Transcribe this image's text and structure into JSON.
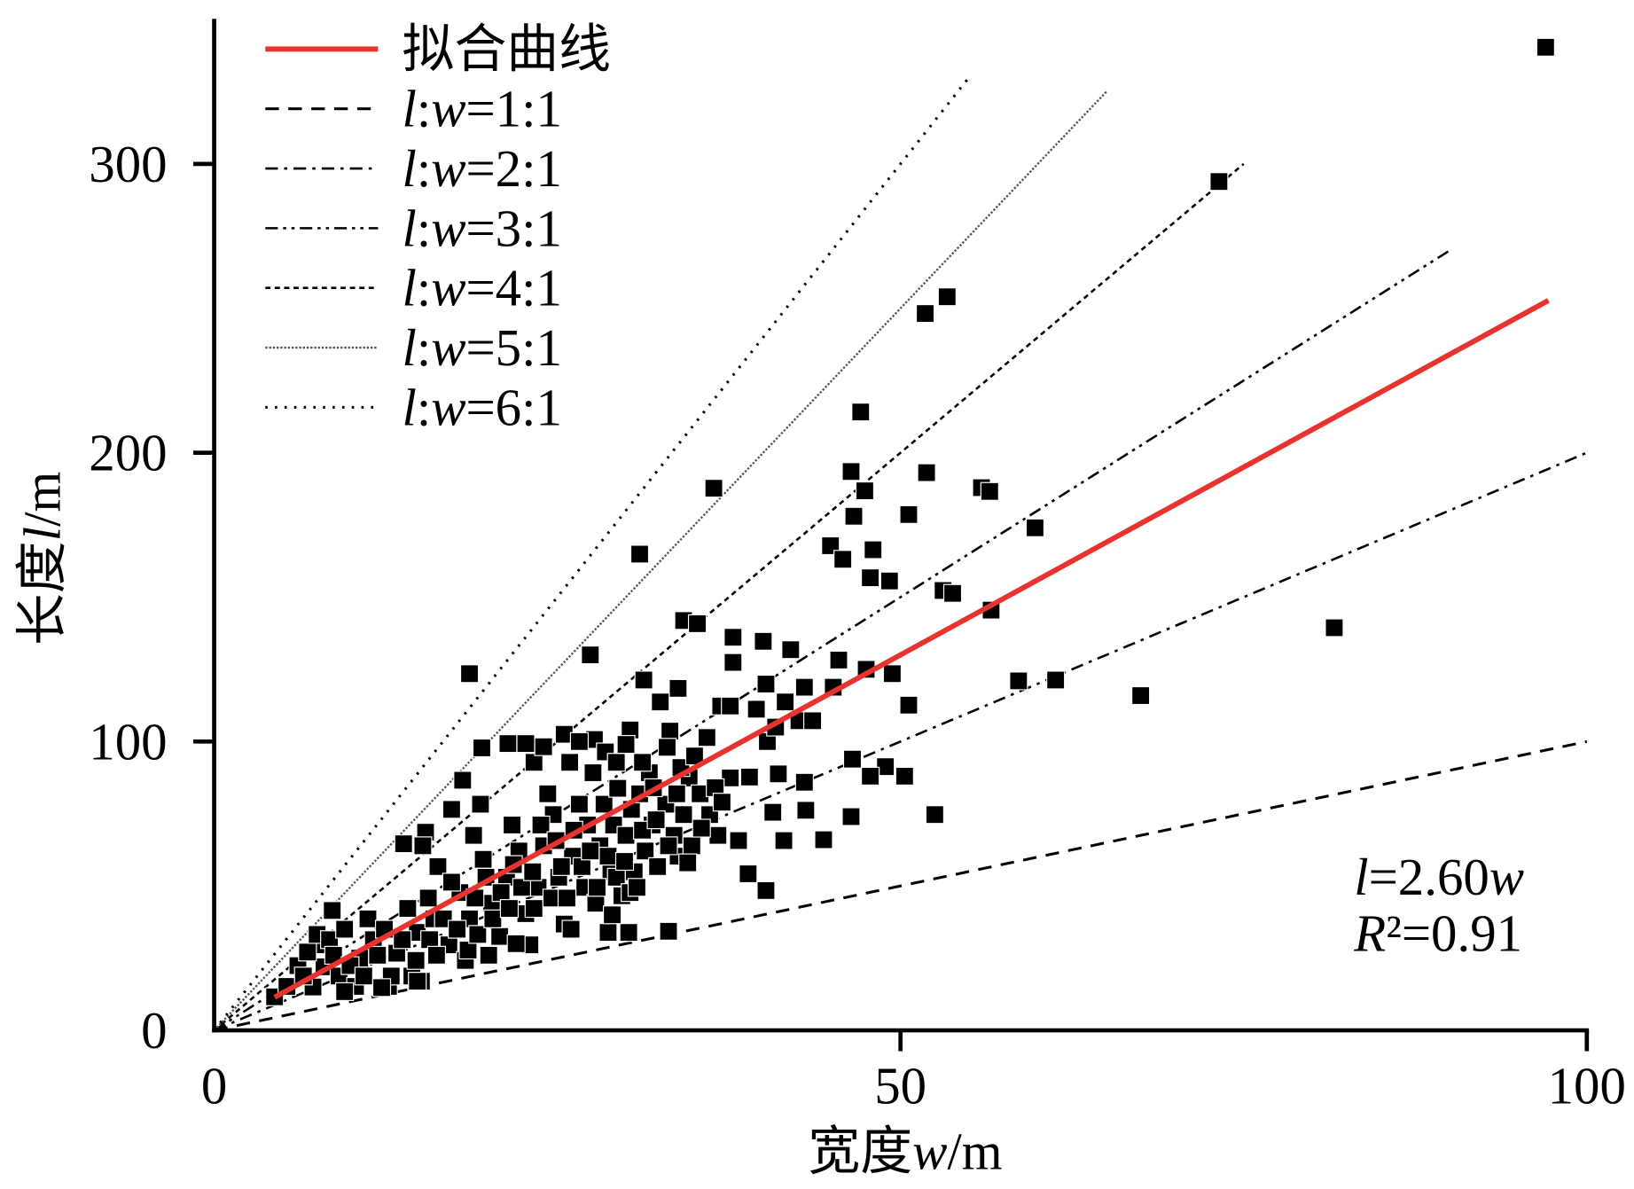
{
  "chart_data": {
    "type": "scatter",
    "xlabel": "宽度w/m",
    "ylabel": "长度l/m",
    "xlim": [
      0,
      100
    ],
    "ylim": [
      0,
      350
    ],
    "x_ticks": [
      0,
      50,
      100
    ],
    "y_ticks": [
      0,
      100,
      200,
      300
    ],
    "grid": false,
    "legend_position": "top-left",
    "scatter": {
      "marker": "square",
      "color": "#000000",
      "points": [
        [
          97.0,
          340.4
        ],
        [
          73.2,
          293.9
        ],
        [
          53.4,
          254.0
        ],
        [
          51.8,
          248.2
        ],
        [
          47.1,
          214.1
        ],
        [
          46.4,
          193.5
        ],
        [
          51.9,
          193.1
        ],
        [
          47.4,
          186.8
        ],
        [
          55.9,
          187.9
        ],
        [
          56.5,
          186.6
        ],
        [
          36.4,
          187.7
        ],
        [
          50.6,
          178.6
        ],
        [
          46.6,
          178.0
        ],
        [
          59.8,
          174.0
        ],
        [
          31.0,
          164.9
        ],
        [
          44.9,
          167.8
        ],
        [
          45.8,
          163.1
        ],
        [
          48.0,
          166.4
        ],
        [
          47.8,
          156.7
        ],
        [
          49.2,
          155.6
        ],
        [
          53.1,
          152.3
        ],
        [
          53.8,
          151.3
        ],
        [
          56.6,
          145.5
        ],
        [
          34.2,
          141.9
        ],
        [
          35.2,
          140.8
        ],
        [
          37.8,
          136.1
        ],
        [
          40.0,
          134.7
        ],
        [
          42.0,
          131.8
        ],
        [
          27.4,
          130.0
        ],
        [
          45.5,
          128.2
        ],
        [
          37.8,
          127.4
        ],
        [
          47.5,
          125.0
        ],
        [
          49.4,
          123.5
        ],
        [
          18.6,
          123.5
        ],
        [
          81.6,
          139.4
        ],
        [
          31.3,
          121.3
        ],
        [
          58.6,
          121.0
        ],
        [
          61.3,
          121.3
        ],
        [
          33.8,
          118.4
        ],
        [
          40.2,
          119.9
        ],
        [
          43.0,
          118.8
        ],
        [
          45.1,
          118.8
        ],
        [
          67.5,
          115.9
        ],
        [
          32.5,
          113.7
        ],
        [
          36.9,
          112.3
        ],
        [
          37.6,
          112.3
        ],
        [
          39.5,
          111.2
        ],
        [
          41.6,
          113.7
        ],
        [
          50.6,
          112.6
        ],
        [
          33.2,
          103.6
        ],
        [
          42.6,
          107.2
        ],
        [
          43.6,
          107.2
        ],
        [
          30.3,
          104.0
        ],
        [
          25.5,
          102.5
        ],
        [
          27.7,
          100.7
        ],
        [
          21.4,
          99.3
        ],
        [
          22.7,
          99.3
        ],
        [
          19.5,
          97.8
        ],
        [
          35.9,
          101.4
        ],
        [
          40.3,
          100.0
        ],
        [
          40.9,
          105.0
        ],
        [
          46.5,
          93.9
        ],
        [
          48.9,
          91.3
        ],
        [
          50.3,
          88.0
        ],
        [
          47.8,
          88.0
        ],
        [
          41.1,
          88.8
        ],
        [
          43.0,
          85.9
        ],
        [
          39.0,
          87.7
        ],
        [
          37.6,
          87.4
        ],
        [
          18.1,
          86.6
        ],
        [
          52.5,
          74.7
        ],
        [
          46.4,
          74.0
        ],
        [
          43.1,
          76.2
        ],
        [
          40.7,
          75.5
        ],
        [
          44.4,
          66.0
        ],
        [
          41.5,
          65.7
        ],
        [
          38.2,
          65.7
        ],
        [
          36.7,
          67.5
        ],
        [
          38.9,
          54.2
        ],
        [
          40.2,
          48.4
        ],
        [
          33.1,
          34.3
        ],
        [
          30.2,
          33.9
        ],
        [
          28.7,
          33.9
        ],
        [
          4.4,
          11.6
        ],
        [
          7.2,
          15.0
        ],
        [
          8.0,
          22.0
        ],
        [
          8.6,
          41.5
        ],
        [
          7.6,
          29.6
        ],
        [
          9.1,
          18.8
        ],
        [
          10.3,
          15.2
        ],
        [
          10.6,
          25.0
        ],
        [
          11.6,
          31.4
        ],
        [
          12.7,
          15.2
        ],
        [
          13.3,
          26.7
        ],
        [
          13.8,
          64.6
        ],
        [
          14.4,
          18.8
        ],
        [
          14.8,
          33.9
        ],
        [
          15.4,
          68.6
        ],
        [
          15.6,
          45.8
        ],
        [
          16.0,
          38.6
        ],
        [
          16.3,
          56.7
        ],
        [
          17.1,
          29.6
        ],
        [
          17.9,
          47.7
        ],
        [
          18.3,
          24.2
        ],
        [
          18.6,
          38.6
        ],
        [
          18.9,
          67.5
        ],
        [
          19.4,
          78.3
        ],
        [
          19.6,
          59.2
        ],
        [
          20.2,
          44.0
        ],
        [
          20.8,
          32.5
        ],
        [
          21.3,
          53.0
        ],
        [
          21.7,
          71.1
        ],
        [
          22.2,
          62.1
        ],
        [
          22.7,
          40.4
        ],
        [
          23.0,
          29.6
        ],
        [
          23.6,
          49.5
        ],
        [
          24.0,
          63.9
        ],
        [
          24.3,
          81.9
        ],
        [
          24.7,
          74.7
        ],
        [
          25.1,
          53.0
        ],
        [
          25.5,
          36.8
        ],
        [
          25.9,
          92.8
        ],
        [
          26.1,
          60.3
        ],
        [
          26.6,
          78.3
        ],
        [
          27.0,
          49.5
        ],
        [
          27.2,
          71.1
        ],
        [
          27.6,
          89.2
        ],
        [
          27.8,
          44.0
        ],
        [
          28.1,
          63.9
        ],
        [
          28.4,
          78.3
        ],
        [
          28.5,
          96.4
        ],
        [
          28.9,
          54.9
        ],
        [
          29.1,
          71.1
        ],
        [
          29.4,
          83.8
        ],
        [
          29.7,
          46.6
        ],
        [
          30.0,
          67.5
        ],
        [
          30.4,
          76.5
        ],
        [
          30.6,
          54.9
        ],
        [
          31.0,
          81.9
        ],
        [
          31.4,
          62.1
        ],
        [
          31.7,
          89.2
        ],
        [
          31.9,
          71.1
        ],
        [
          32.3,
          56.7
        ],
        [
          32.9,
          78.3
        ],
        [
          33.5,
          67.5
        ],
        [
          33.8,
          60.3
        ],
        [
          34.2,
          74.7
        ],
        [
          34.6,
          87.4
        ],
        [
          34.8,
          63.9
        ],
        [
          35.4,
          81.9
        ],
        [
          36.1,
          74.7
        ],
        [
          5.3,
          15.2
        ],
        [
          6.1,
          22.4
        ],
        [
          6.5,
          18.8
        ],
        [
          6.8,
          27.1
        ],
        [
          7.5,
          33.2
        ],
        [
          8.4,
          31.4
        ],
        [
          8.7,
          26.0
        ],
        [
          9.5,
          35.0
        ],
        [
          9.9,
          22.4
        ],
        [
          10.9,
          18.8
        ],
        [
          11.2,
          38.6
        ],
        [
          11.9,
          26.0
        ],
        [
          12.4,
          35.0
        ],
        [
          12.9,
          18.8
        ],
        [
          13.7,
          31.4
        ],
        [
          14.1,
          42.2
        ],
        [
          14.7,
          24.2
        ],
        [
          15.1,
          17.0
        ],
        [
          15.7,
          31.4
        ],
        [
          16.2,
          26.0
        ],
        [
          16.7,
          38.6
        ],
        [
          17.3,
          51.3
        ],
        [
          17.7,
          35.0
        ],
        [
          18.5,
          27.8
        ],
        [
          19.0,
          45.8
        ],
        [
          19.2,
          33.2
        ],
        [
          19.8,
          53.0
        ],
        [
          20.3,
          38.6
        ],
        [
          20.9,
          47.7
        ],
        [
          21.5,
          42.2
        ],
        [
          21.8,
          57.4
        ],
        [
          22.4,
          49.5
        ],
        [
          23.2,
          54.9
        ],
        [
          23.3,
          42.2
        ],
        [
          23.8,
          71.1
        ],
        [
          24.6,
          45.8
        ],
        [
          24.9,
          65.7
        ],
        [
          25.3,
          56.7
        ],
        [
          25.7,
          45.8
        ],
        [
          26.2,
          69.3
        ],
        [
          26.8,
          56.7
        ],
        [
          27.4,
          62.1
        ],
        [
          27.9,
          49.5
        ],
        [
          28.7,
          60.3
        ],
        [
          29.3,
          53.0
        ],
        [
          29.9,
          58.5
        ],
        [
          30.3,
          47.7
        ],
        [
          30.8,
          49.5
        ],
        [
          31.2,
          69.3
        ],
        [
          32.2,
          72.9
        ],
        [
          33.1,
          63.9
        ],
        [
          33.7,
          81.9
        ],
        [
          34.0,
          91.0
        ],
        [
          23.3,
          92.8
        ],
        [
          26.6,
          100.0
        ],
        [
          29.3,
          92.8
        ],
        [
          31.2,
          92.8
        ],
        [
          24.0,
          98.2
        ],
        [
          17.3,
          76.5
        ],
        [
          15.2,
          63.9
        ],
        [
          9.5,
          13.4
        ],
        [
          12.2,
          14.8
        ],
        [
          14.8,
          17.0
        ],
        [
          35.0,
          95.0
        ],
        [
          36.5,
          84.0
        ],
        [
          37.0,
          79.0
        ],
        [
          33.0,
          98.0
        ],
        [
          30.0,
          99.0
        ],
        [
          32.0,
          84.0
        ],
        [
          35.5,
          70.0
        ],
        [
          34.5,
          58.0
        ],
        [
          29.0,
          40.0
        ],
        [
          26.0,
          35.0
        ],
        [
          22.0,
          30.0
        ],
        [
          20.0,
          26.0
        ]
      ]
    },
    "lines": [
      {
        "name": "拟合曲线",
        "style": "solid",
        "color": "#e8332e",
        "slope": 2.6,
        "x_range": [
          4.4,
          97.2
        ]
      },
      {
        "name": "l:w=1:1",
        "style": "dashed",
        "color": "#000000",
        "slope": 1,
        "x_range": [
          0,
          100
        ]
      },
      {
        "name": "l:w=2:1",
        "style": "dash-dot",
        "color": "#000000",
        "slope": 2,
        "x_range": [
          0,
          100
        ]
      },
      {
        "name": "l:w=3:1",
        "style": "dash-dot-dot",
        "color": "#000000",
        "slope": 3,
        "x_range": [
          0,
          90
        ]
      },
      {
        "name": "l:w=4:1",
        "style": "short-dashed",
        "color": "#000000",
        "slope": 4,
        "x_range": [
          0,
          75
        ]
      },
      {
        "name": "l:w=5:1",
        "style": "fine-dotted",
        "color": "#555555",
        "slope": 5,
        "x_range": [
          0,
          65
        ]
      },
      {
        "name": "l:w=6:1",
        "style": "dotted",
        "color": "#000000",
        "slope": 6,
        "x_range": [
          0,
          55
        ]
      }
    ],
    "annotations": [
      "l=2.60w",
      "R²=0.91"
    ]
  }
}
